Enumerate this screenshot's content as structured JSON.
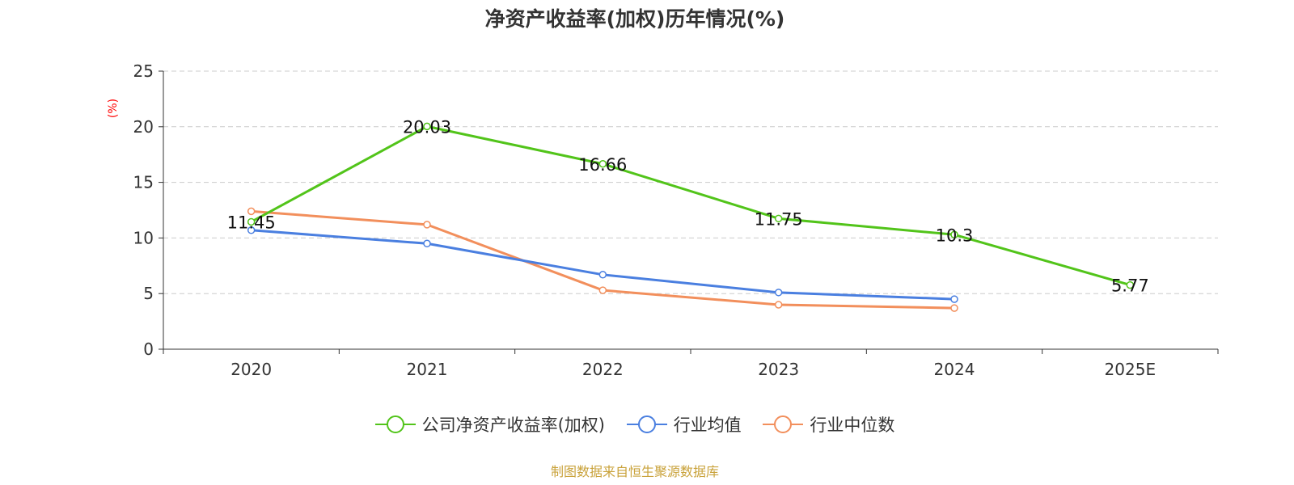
{
  "chart_data": {
    "type": "line",
    "title": "净资产收益率(加权)历年情况(%)",
    "ylabel": "(%)",
    "xlabel": "",
    "categories": [
      "2020",
      "2021",
      "2022",
      "2023",
      "2024",
      "2025E"
    ],
    "ylim": [
      0,
      25
    ],
    "yticks": [
      0,
      5,
      10,
      15,
      20,
      25
    ],
    "grid": true,
    "legend_position": "bottom",
    "series": [
      {
        "name": "公司净资产收益率(加权)",
        "color": "#52c41a",
        "values": [
          11.45,
          20.03,
          16.66,
          11.75,
          10.3,
          5.77
        ],
        "data_labels": [
          "11.45",
          "20.03",
          "16.66",
          "11.75",
          "10.3",
          "5.77"
        ]
      },
      {
        "name": "行业均值",
        "color": "#4a7fe0",
        "values": [
          10.7,
          9.5,
          6.7,
          5.1,
          4.5,
          null
        ]
      },
      {
        "name": "行业中位数",
        "color": "#f28f5c",
        "values": [
          12.4,
          11.2,
          5.3,
          4.0,
          3.7,
          null
        ]
      }
    ]
  },
  "source_text": "制图数据来自恒生聚源数据库",
  "colors": {
    "source": "#c9a23a",
    "ylabel": "#ff0000",
    "axis": "#333333",
    "grid": "#cccccc"
  }
}
